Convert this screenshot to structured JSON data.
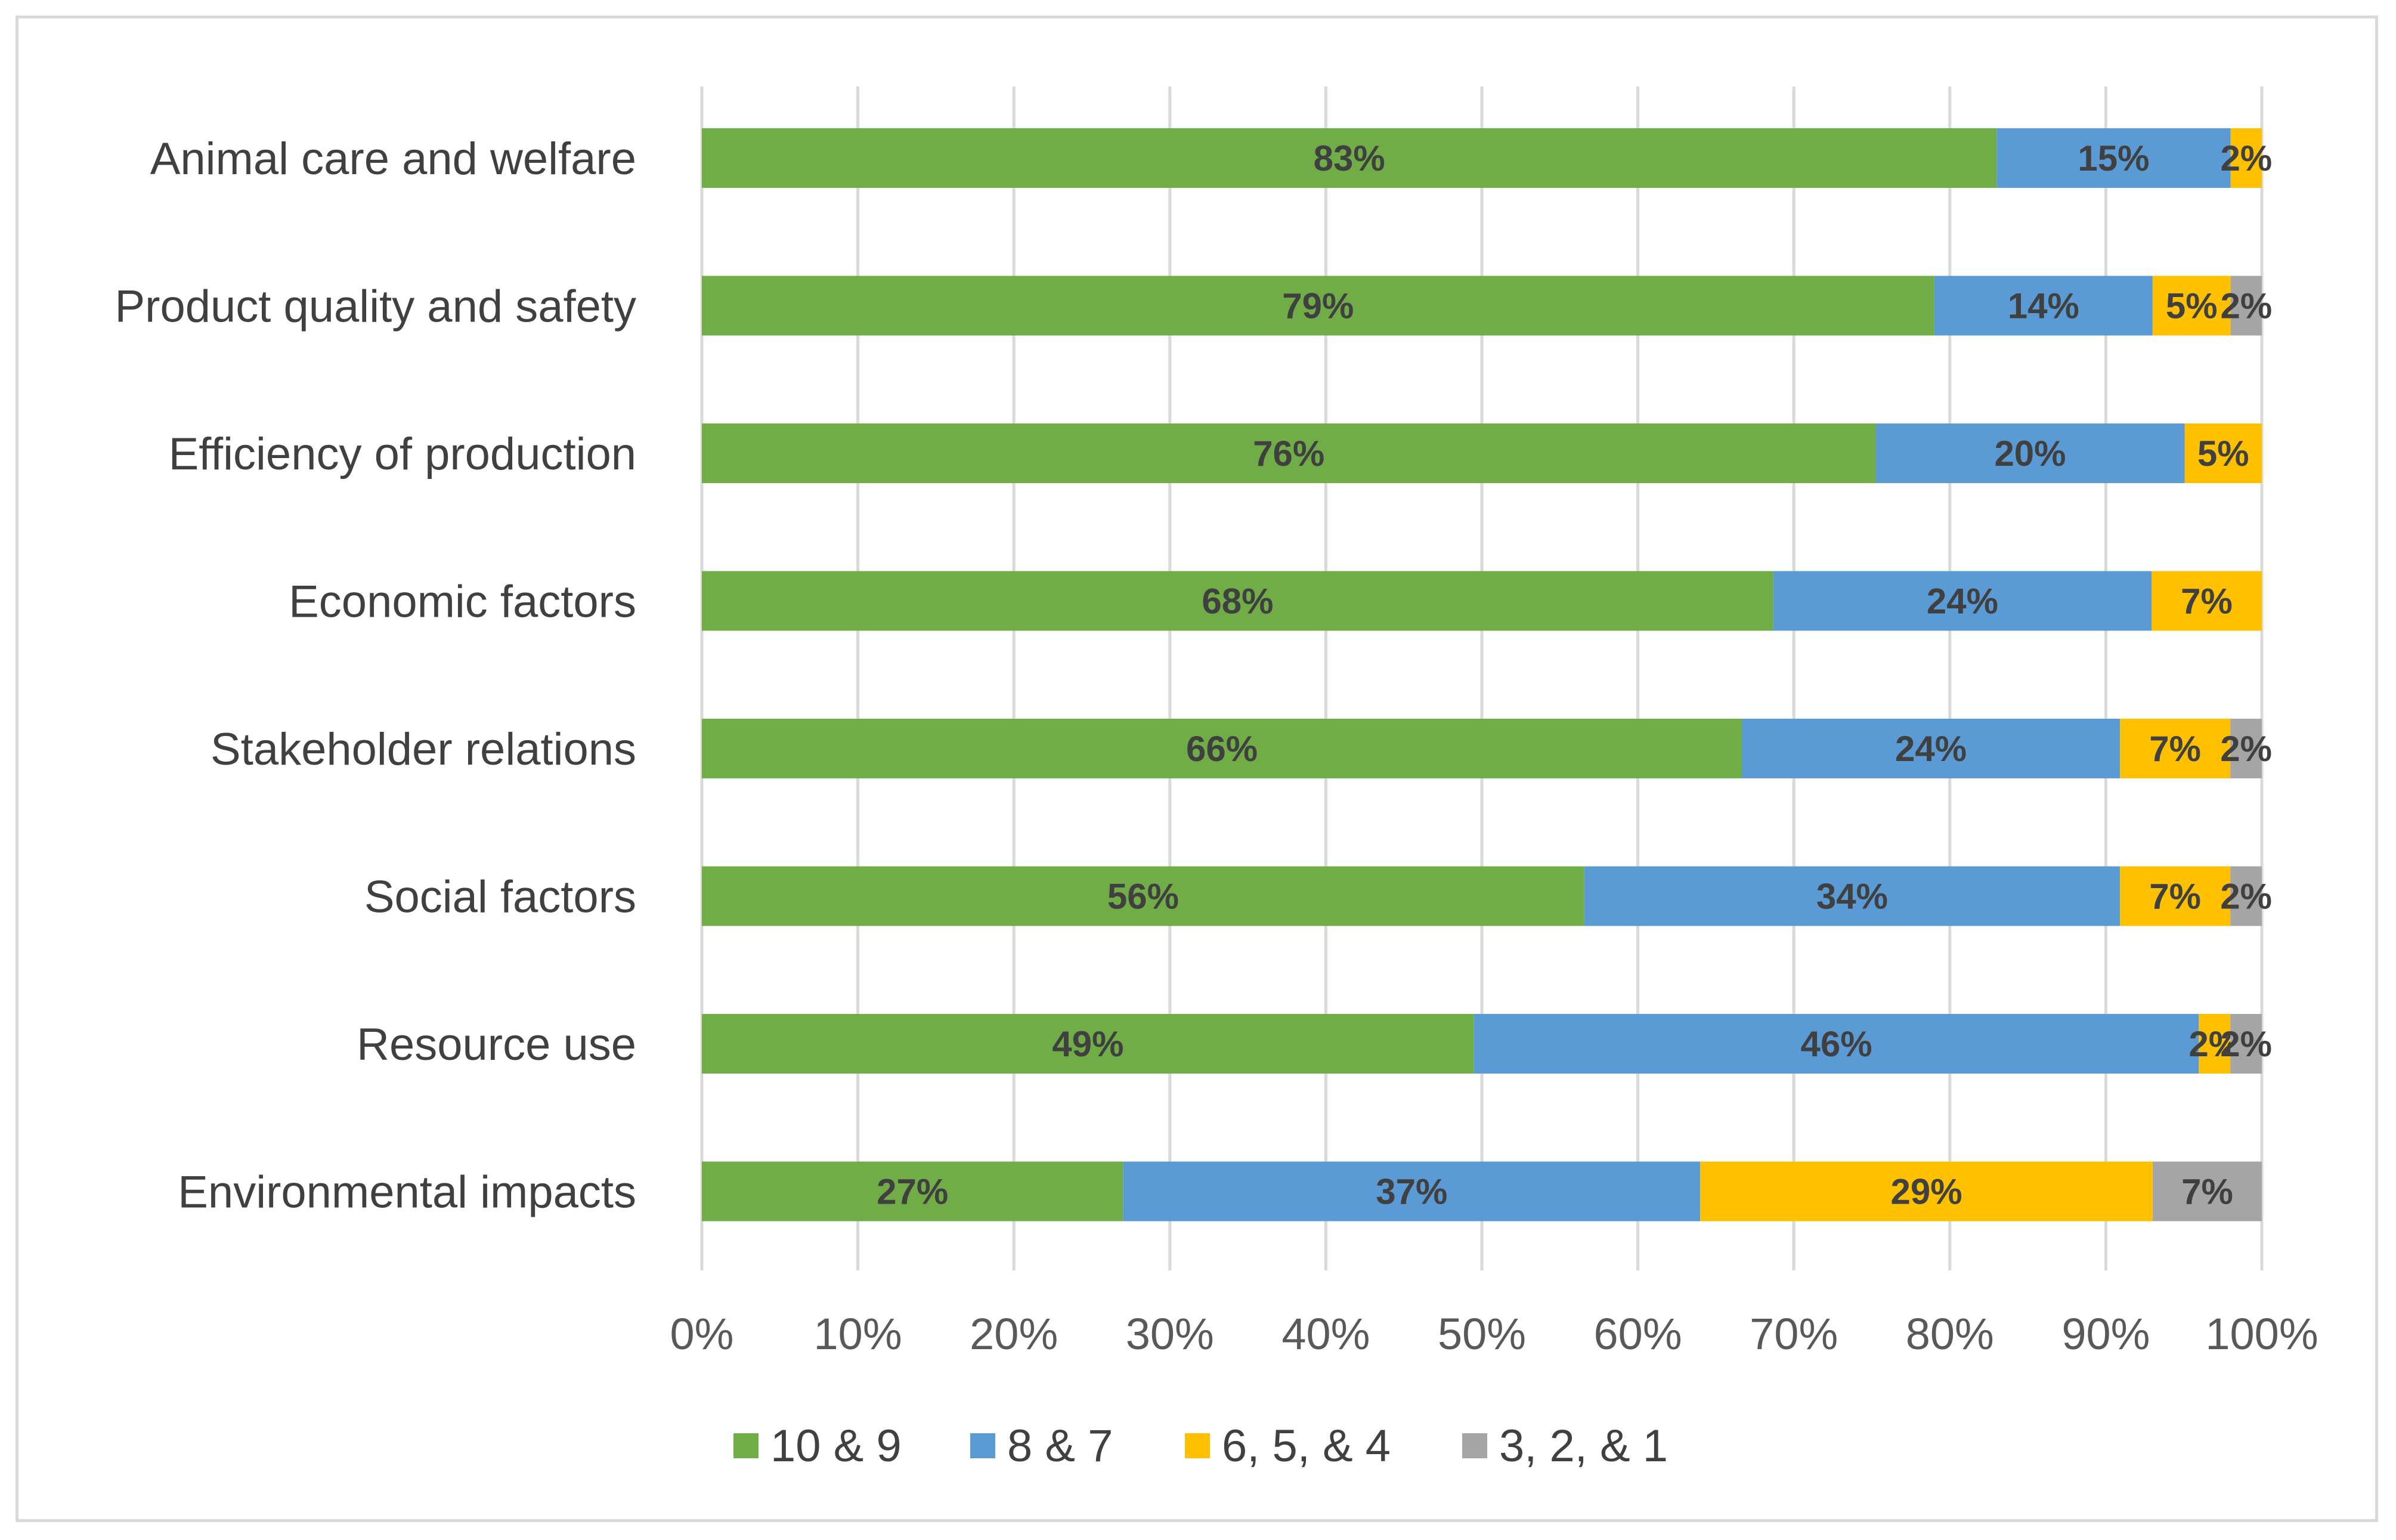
{
  "chart_data": {
    "type": "bar",
    "orientation": "horizontal",
    "stacked": "percent",
    "categories": [
      "Animal care and welfare",
      "Product quality and safety",
      "Efficiency of production",
      "Economic factors",
      "Stakeholder relations",
      "Social factors",
      "Resource use",
      "Environmental impacts"
    ],
    "series": [
      {
        "name": "10 & 9",
        "color": "#70ad47",
        "values": [
          83,
          79,
          76,
          68,
          66,
          56,
          49,
          27
        ]
      },
      {
        "name": "8 & 7",
        "color": "#5b9bd5",
        "values": [
          15,
          14,
          20,
          24,
          24,
          34,
          46,
          37
        ]
      },
      {
        "name": "6, 5, & 4",
        "color": "#ffc000",
        "values": [
          2,
          5,
          5,
          7,
          7,
          7,
          2,
          29
        ]
      },
      {
        "name": "3, 2, & 1",
        "color": "#a5a5a5",
        "values": [
          0,
          2,
          0,
          0,
          2,
          2,
          2,
          7
        ]
      }
    ],
    "data_labels": [
      [
        "83%",
        "15%",
        "2%",
        ""
      ],
      [
        "79%",
        "14%",
        "5%",
        "2%"
      ],
      [
        "76%",
        "20%",
        "5%",
        ""
      ],
      [
        "68%",
        "24%",
        "7%",
        ""
      ],
      [
        "66%",
        "24%",
        "7%",
        "2%"
      ],
      [
        "56%",
        "34%",
        "7%",
        "2%"
      ],
      [
        "49%",
        "46%",
        "2%",
        "2%"
      ],
      [
        "27%",
        "37%",
        "29%",
        "7%"
      ]
    ],
    "xticks": [
      "0%",
      "10%",
      "20%",
      "30%",
      "40%",
      "50%",
      "60%",
      "70%",
      "80%",
      "90%",
      "100%"
    ],
    "xlim": [
      0,
      100
    ],
    "grid": true,
    "legend": "bottom",
    "title": "",
    "xlabel": "",
    "ylabel": ""
  }
}
